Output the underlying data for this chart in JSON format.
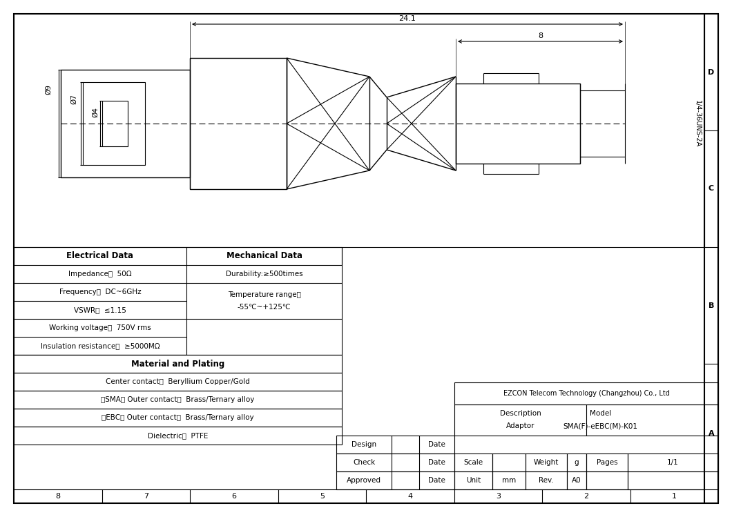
{
  "bg_color": "#ffffff",
  "lc": "#000000",
  "dim_24": "24.1",
  "dim_8": "8",
  "dim_phi9": "Ø9",
  "dim_phi7": "Ø7",
  "dim_phi4": "Ø4",
  "thread_label": "1/4-36UNS-2A",
  "company": "EZCON Telecom Technology (Changzhou) Co., Ltd",
  "desc_label": "Description",
  "desc_value": "Adaptor",
  "model_label": "Model",
  "model_value": "SMA(F)-eEBC(M)-K01",
  "elec_header": "Electrical Data",
  "mech_header": "Mechanical Data",
  "mat_header": "Material and Plating",
  "elec_texts": [
    "Impedance：  50Ω",
    "Frequency：  DC~6GHz",
    "VSWR：  ≤1.15",
    "Working voltage：  750V rms",
    "Insulation resistance：  ≥5000MΩ"
  ],
  "mech_text0": "Durability:≥500times",
  "mech_text12a": "Temperature range：",
  "mech_text12b": "-55℃~+125℃",
  "mat_rows": [
    "Center contact：  Beryllium Copper/Gold",
    "（SMA） Outer contact：  Brass/Ternary alloy",
    "（EBC） Outer contact：  Brass/Ternary alloy",
    "Dielectric：  PTFE"
  ],
  "tb_design": "Design",
  "tb_check": "Check",
  "tb_approved": "Approved",
  "tb_date": "Date",
  "tb_scale": "Scale",
  "tb_weight": "Weight",
  "tb_weight_val": "g",
  "tb_pages": "Pages",
  "tb_pages_val": "1/1",
  "tb_unit": "Unit",
  "tb_unit_val": "mm",
  "tb_rev": "Rev.",
  "tb_rev_val": "A0",
  "border_labels": [
    "D",
    "C",
    "B",
    "A"
  ],
  "col_labels": [
    "8",
    "7",
    "6",
    "5",
    "4",
    "3",
    "2",
    "1"
  ]
}
